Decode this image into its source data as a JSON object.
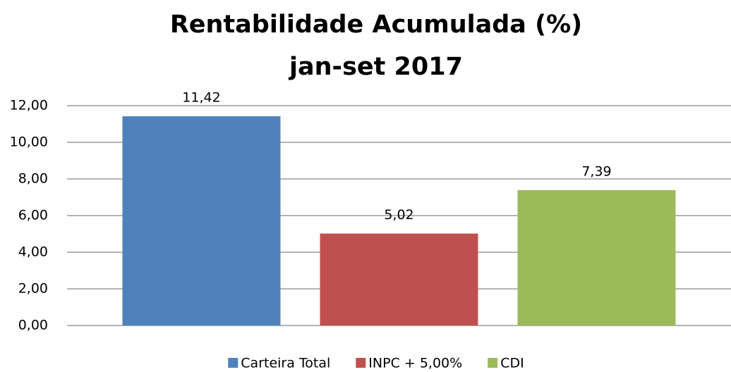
{
  "chart_data": {
    "type": "bar",
    "title": "Rentabilidade Acumulada (%)",
    "subtitle": "jan-set 2017",
    "categories": [
      null
    ],
    "series": [
      {
        "name": "Carteira Total",
        "color": "#4f81bd",
        "values": [
          11.42
        ],
        "value_labels": [
          "11,42"
        ]
      },
      {
        "name": "INPC + 5,00%",
        "color": "#c0504d",
        "values": [
          5.02
        ],
        "value_labels": [
          "5,02"
        ]
      },
      {
        "name": "CDI",
        "color": "#9bbb59",
        "values": [
          7.39
        ],
        "value_labels": [
          "7,39"
        ]
      }
    ],
    "ylim": [
      0,
      12
    ],
    "yticks": [
      {
        "value": 0,
        "label": "0,00"
      },
      {
        "value": 2,
        "label": "2,00"
      },
      {
        "value": 4,
        "label": "4,00"
      },
      {
        "value": 6,
        "label": "6,00"
      },
      {
        "value": 8,
        "label": "8,00"
      },
      {
        "value": 10,
        "label": "10,00"
      },
      {
        "value": 12,
        "label": "12,00"
      }
    ],
    "grid": true,
    "legend": "bottom"
  }
}
